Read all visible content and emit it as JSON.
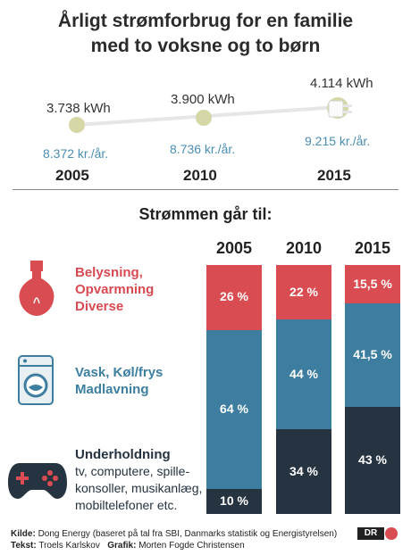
{
  "title_line1": "Årligt strømforbrug for en familie",
  "title_line2": "med to voksne og to børn",
  "timeline": [
    {
      "year": "2005",
      "kwh": "3.738 kWh",
      "price": "8.372 kr./år.",
      "kwh_value": 3738
    },
    {
      "year": "2010",
      "kwh": "3.900 kWh",
      "price": "8.736 kr./år.",
      "kwh_value": 3900
    },
    {
      "year": "2015",
      "kwh": "4.114 kWh",
      "price": "9.215 kr./år.",
      "kwh_value": 4114
    }
  ],
  "subtitle": "Strømmen går til:",
  "categories": {
    "lighting": {
      "lines": [
        "Belysning,",
        "Opvarmning",
        "Diverse"
      ]
    },
    "appliances": {
      "lines": [
        "Vask, Køl/frys",
        "Madlavning"
      ]
    },
    "entertainment": {
      "head": "Underholdning",
      "lines": [
        "tv, computere, spille-",
        "konsoller, musikanlæg,",
        "mobiltelefoner etc."
      ]
    }
  },
  "chart_data": {
    "type": "bar",
    "stacked": true,
    "categories": [
      "2005",
      "2010",
      "2015"
    ],
    "series": [
      {
        "name": "Underholdning",
        "values": [
          10,
          34,
          43
        ],
        "labels": [
          "10 %",
          "34 %",
          "43 %"
        ],
        "color": "#263340"
      },
      {
        "name": "Vask, Køl/frys, Madlavning",
        "values": [
          64,
          44,
          41.5
        ],
        "labels": [
          "64 %",
          "44 %",
          "41,5 %"
        ],
        "color": "#3d7d9f"
      },
      {
        "name": "Belysning, Opvarmning, Diverse",
        "values": [
          26,
          22,
          15.5
        ],
        "labels": [
          "26 %",
          "22 %",
          "15,5 %"
        ],
        "color": "#d94c51"
      }
    ],
    "ylim": [
      0,
      100
    ]
  },
  "colors": {
    "red": "#d94c51",
    "blue": "#3d7d9f",
    "dark": "#263340",
    "dot": "#d5d8a6"
  },
  "footer": {
    "source_label": "Kilde:",
    "source_text": "Dong Energy (baseret på tal fra SBI, Danmarks statistik og Energistyrelsen)",
    "text_label": "Tekst:",
    "text_author": "Troels Karlskov",
    "graphics_label": "Grafik:",
    "graphics_author": "Morten Fogde Christensen",
    "logo": "DR"
  }
}
